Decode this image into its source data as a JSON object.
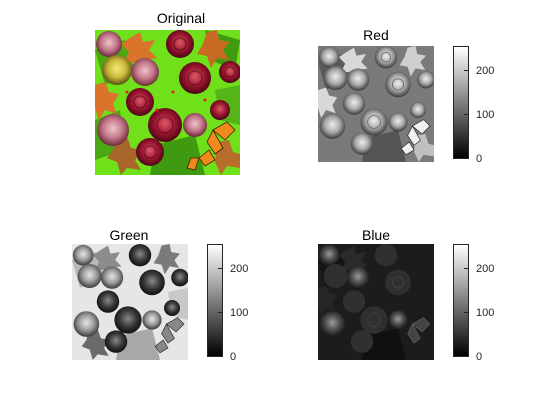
{
  "figure": {
    "panels": [
      {
        "id": "original",
        "title": "Original",
        "has_colorbar": false
      },
      {
        "id": "red",
        "title": "Red",
        "has_colorbar": true
      },
      {
        "id": "green",
        "title": "Green",
        "has_colorbar": true
      },
      {
        "id": "blue",
        "title": "Blue",
        "has_colorbar": true
      }
    ],
    "colorbar": {
      "ticks": [
        "0",
        "100",
        "200"
      ],
      "range": [
        0,
        255
      ]
    },
    "colors": {
      "leaf_green": "#6fe01a",
      "rose_red": "#9b1530",
      "rose_pink": "#c4788a",
      "rose_yellow": "#c8b83a",
      "maple_orange": "#d9742a",
      "butterfly_orange": "#f08a1c"
    }
  }
}
